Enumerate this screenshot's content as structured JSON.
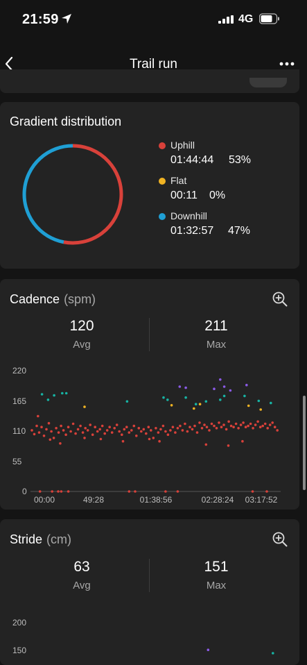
{
  "status_bar": {
    "time": "21:59",
    "network": "4G",
    "icons": [
      "location-arrow-icon",
      "signal-bars-icon",
      "battery-icon"
    ]
  },
  "nav": {
    "title": "Trail run",
    "back_icon": "chevron-left-icon",
    "more_icon": "ellipsis-icon"
  },
  "gradient": {
    "title": "Gradient distribution",
    "items": [
      {
        "label": "Uphill",
        "time": "01:44:44",
        "percent": "53%",
        "fraction": 0.53,
        "color": "#d8413a"
      },
      {
        "label": "Flat",
        "time": "00:11",
        "percent": "0%",
        "fraction": 0.0,
        "color": "#f0b323"
      },
      {
        "label": "Downhill",
        "time": "01:32:57",
        "percent": "47%",
        "fraction": 0.47,
        "color": "#1f9fd4"
      }
    ]
  },
  "cadence": {
    "title": "Cadence",
    "unit": "(spm)",
    "avg_value": "120",
    "avg_label": "Avg",
    "max_value": "211",
    "max_label": "Max",
    "zoom_icon": "zoom-in-icon",
    "chart_data": {
      "type": "scatter",
      "x_unit": "elapsed seconds",
      "ylim": [
        0,
        220
      ],
      "xlim": [
        0,
        12250
      ],
      "y_ticks": [
        "220",
        "165",
        "110",
        "55",
        "0"
      ],
      "x_ticks": [
        "00:00",
        "49:28",
        "01:38:56",
        "02:28:24",
        "03:17:52"
      ],
      "series": [
        {
          "color": "#d8413a",
          "points": [
            [
              0,
              112
            ],
            [
              120,
              105
            ],
            [
              240,
              120
            ],
            [
              360,
              108
            ],
            [
              480,
              118
            ],
            [
              600,
              102
            ],
            [
              720,
              114
            ],
            [
              840,
              125
            ],
            [
              960,
              110
            ],
            [
              1080,
              98
            ],
            [
              1200,
              116
            ],
            [
              1320,
              108
            ],
            [
              1440,
              120
            ],
            [
              1560,
              112
            ],
            [
              1680,
              104
            ],
            [
              1800,
              118
            ],
            [
              1920,
              110
            ],
            [
              2040,
              124
            ],
            [
              2160,
              106
            ],
            [
              2280,
              114
            ],
            [
              2400,
              120
            ],
            [
              2520,
              108
            ],
            [
              2640,
              116
            ],
            [
              2760,
              112
            ],
            [
              2880,
              122
            ],
            [
              3000,
              104
            ],
            [
              3120,
              118
            ],
            [
              3240,
              110
            ],
            [
              3360,
              114
            ],
            [
              3480,
              120
            ],
            [
              3600,
              106
            ],
            [
              3720,
              112
            ],
            [
              3840,
              118
            ],
            [
              3960,
              108
            ],
            [
              4080,
              116
            ],
            [
              4200,
              122
            ],
            [
              4320,
              110
            ],
            [
              4440,
              104
            ],
            [
              4560,
              114
            ],
            [
              4680,
              118
            ],
            [
              4800,
              108
            ],
            [
              4920,
              112
            ],
            [
              5040,
              120
            ],
            [
              5160,
              102
            ],
            [
              5280,
              116
            ],
            [
              5400,
              110
            ],
            [
              5520,
              114
            ],
            [
              5640,
              106
            ],
            [
              5760,
              118
            ],
            [
              5880,
              112
            ],
            [
              6000,
              98
            ],
            [
              6120,
              116
            ],
            [
              6240,
              108
            ],
            [
              6360,
              114
            ],
            [
              6480,
              120
            ],
            [
              6600,
              110
            ],
            [
              6720,
              104
            ],
            [
              6840,
              112
            ],
            [
              6960,
              118
            ],
            [
              7080,
              108
            ],
            [
              7200,
              116
            ],
            [
              7320,
              120
            ],
            [
              7440,
              112
            ],
            [
              7560,
              124
            ],
            [
              7680,
              110
            ],
            [
              7800,
              118
            ],
            [
              7920,
              114
            ],
            [
              8040,
              120
            ],
            [
              8160,
              108
            ],
            [
              8280,
              126
            ],
            [
              8400,
              116
            ],
            [
              8520,
              122
            ],
            [
              8640,
              118
            ],
            [
              8760,
              112
            ],
            [
              8880,
              124
            ],
            [
              9000,
              120
            ],
            [
              9120,
              116
            ],
            [
              9240,
              126
            ],
            [
              9360,
              118
            ],
            [
              9480,
              122
            ],
            [
              9600,
              114
            ],
            [
              9720,
              128
            ],
            [
              9840,
              120
            ],
            [
              9960,
              118
            ],
            [
              10080,
              124
            ],
            [
              10200,
              116
            ],
            [
              10320,
              122
            ],
            [
              10440,
              126
            ],
            [
              10560,
              118
            ],
            [
              10680,
              120
            ],
            [
              10800,
              124
            ],
            [
              10920,
              116
            ],
            [
              11040,
              122
            ],
            [
              11160,
              128
            ],
            [
              11280,
              118
            ],
            [
              11400,
              120
            ],
            [
              11520,
              124
            ],
            [
              11640,
              116
            ],
            [
              11760,
              122
            ],
            [
              11880,
              126
            ],
            [
              12000,
              118
            ],
            [
              12120,
              112
            ],
            [
              300,
              138
            ],
            [
              900,
              95
            ],
            [
              1400,
              88
            ],
            [
              2600,
              98
            ],
            [
              3400,
              96
            ],
            [
              4500,
              92
            ],
            [
              5800,
              96
            ],
            [
              6300,
              92
            ],
            [
              8600,
              86
            ],
            [
              9700,
              84
            ],
            [
              10400,
              92
            ],
            [
              400,
              0
            ],
            [
              1000,
              0
            ],
            [
              1300,
              0
            ],
            [
              1450,
              0
            ],
            [
              1800,
              0
            ],
            [
              4800,
              0
            ],
            [
              5100,
              0
            ],
            [
              6600,
              0
            ],
            [
              7200,
              0
            ],
            [
              10900,
              0
            ],
            [
              11600,
              0
            ]
          ]
        },
        {
          "color": "#17b3a3",
          "points": [
            [
              500,
              178
            ],
            [
              800,
              168
            ],
            [
              1100,
              176
            ],
            [
              1500,
              180
            ],
            [
              1700,
              180
            ],
            [
              4700,
              165
            ],
            [
              6500,
              172
            ],
            [
              6700,
              168
            ],
            [
              7600,
              172
            ],
            [
              8100,
              160
            ],
            [
              8600,
              165
            ],
            [
              9300,
              168
            ],
            [
              9500,
              175
            ],
            [
              10500,
              175
            ],
            [
              11200,
              166
            ],
            [
              11800,
              162
            ]
          ]
        },
        {
          "color": "#f0b323",
          "points": [
            [
              2600,
              155
            ],
            [
              6900,
              158
            ],
            [
              8000,
              152
            ],
            [
              8300,
              160
            ],
            [
              10700,
              157
            ],
            [
              11300,
              150
            ]
          ]
        },
        {
          "color": "#8a5ae6",
          "points": [
            [
              7300,
              192
            ],
            [
              7600,
              190
            ],
            [
              9000,
              188
            ],
            [
              9300,
              205
            ],
            [
              9500,
              192
            ],
            [
              9800,
              185
            ],
            [
              10600,
              195
            ]
          ]
        }
      ]
    }
  },
  "stride": {
    "title": "Stride",
    "unit": "(cm)",
    "avg_value": "63",
    "avg_label": "Avg",
    "max_value": "151",
    "max_label": "Max",
    "zoom_icon": "zoom-in-icon",
    "chart_data": {
      "type": "scatter",
      "ylim": [
        0,
        200
      ],
      "y_ticks": [
        "200",
        "150"
      ],
      "series": [
        {
          "color": "#8a5ae6",
          "points": [
            [
              8700,
              151
            ]
          ]
        },
        {
          "color": "#17b3a3",
          "points": [
            [
              11900,
              145
            ]
          ]
        }
      ]
    }
  }
}
